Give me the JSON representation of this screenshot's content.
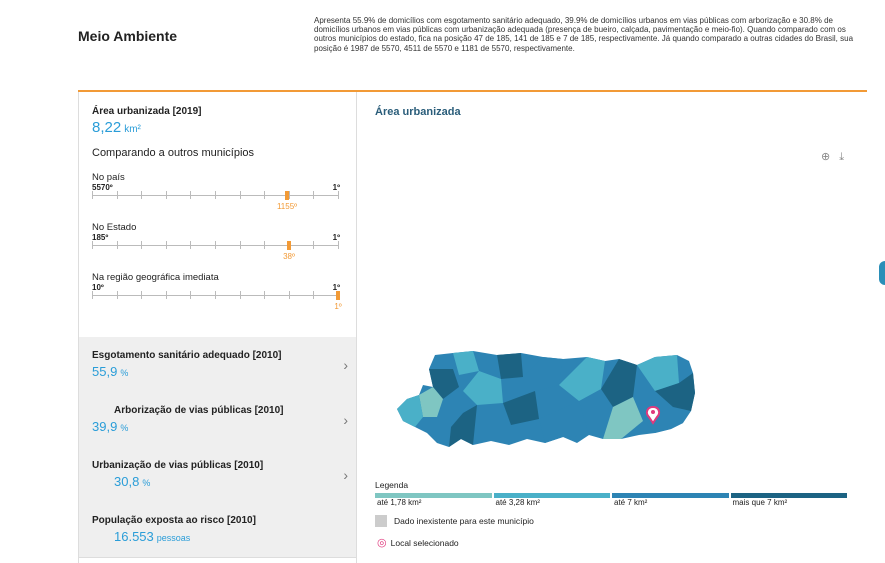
{
  "page": {
    "title": "Meio Ambiente",
    "description": "Apresenta 55.9% de domicílios com esgotamento sanitário adequado, 39.9% de domicílios urbanos em vias públicas com arborização e 30.8% de domicílios urbanos em vias públicas com urbanização adequada (presença de bueiro, calçada, pavimentação e meio-fio). Quando comparado com os outros municípios do estado, fica na posição 47 de 185, 141 de 185 e 7 de 185, respectivamente. Já quando comparado a outras cidades do Brasil, sua posição é 1987 de 5570, 4511 de 5570 e 1181 de 5570, respectivamente."
  },
  "indicator": {
    "label": "Área urbanizada [2019]",
    "value": "8,22",
    "unit": "km²",
    "compare_title": "Comparando a outros municípios"
  },
  "rankings": [
    {
      "label": "No país",
      "min": "5570º",
      "max": "1º",
      "value_label": "1155º",
      "position": 0.793
    },
    {
      "label": "No Estado",
      "min": "185º",
      "max": "1º",
      "value_label": "38º",
      "position": 0.8
    },
    {
      "label": "Na região geográfica imediata",
      "min": "10º",
      "max": "1º",
      "value_label": "1º",
      "position": 1.0
    }
  ],
  "cards": [
    {
      "label": "Esgotamento sanitário adequado [2010]",
      "value": "55,9",
      "unit": "%"
    },
    {
      "label": "Arborização de vias públicas [2010]",
      "value": "39,9",
      "unit": "%"
    },
    {
      "label": "Urbanização de vias públicas [2010]",
      "value": "30,8",
      "unit": "%"
    },
    {
      "label": "População exposta ao risco [2010]",
      "value": "16.553",
      "unit": "pessoas"
    }
  ],
  "map": {
    "title": "Área urbanizada",
    "legend_title": "Legenda",
    "legend": [
      {
        "label": "até 1,78 km²",
        "color": "#7fc6c2"
      },
      {
        "label": "até 3,28 km²",
        "color": "#4ab0c8"
      },
      {
        "label": "até 7 km²",
        "color": "#2d84b4"
      },
      {
        "label": "mais que 7 km²",
        "color": "#1c6383"
      }
    ],
    "no_data_label": "Dado inexistente para este município",
    "selected_label": "Local selecionado",
    "selected_color": "#e0397d"
  },
  "icons": {
    "zoom": "zoom-icon",
    "download": "download-icon",
    "chevron": "chevron-right-icon",
    "pin": "map-pin-icon"
  }
}
